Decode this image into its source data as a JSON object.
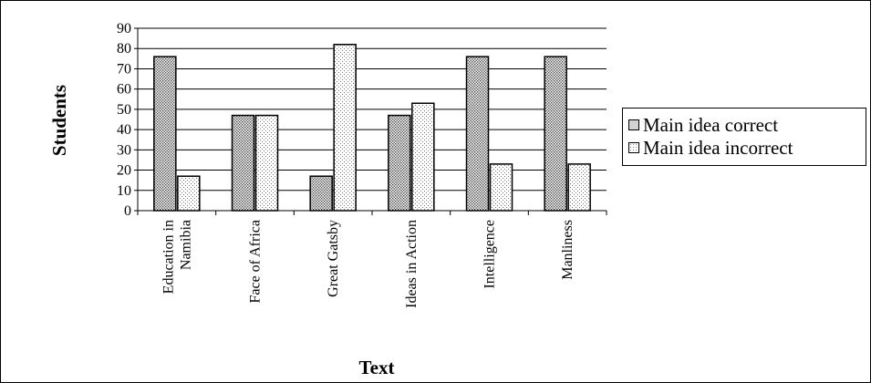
{
  "chart_data": {
    "type": "bar",
    "categories": [
      [
        "Education in",
        "Namibia"
      ],
      [
        "Face of Africa"
      ],
      [
        "Great Gatsby"
      ],
      [
        "Ideas in Action"
      ],
      [
        "Intelligence"
      ],
      [
        "Manliness"
      ]
    ],
    "series": [
      {
        "name": "Main idea correct",
        "values": [
          76,
          47,
          17,
          47,
          76,
          76
        ],
        "pattern": "dense-dots"
      },
      {
        "name": "Main idea incorrect",
        "values": [
          17,
          47,
          82,
          53,
          23,
          23
        ],
        "pattern": "sparse-dots"
      }
    ],
    "xlabel": "Text",
    "ylabel": "Students",
    "ylim": [
      0,
      90
    ],
    "yticks": [
      0,
      10,
      20,
      30,
      40,
      50,
      60,
      70,
      80,
      90
    ],
    "grid": true,
    "legend_position": "right",
    "colors": {
      "axis": "#000000",
      "bar_fill": "#ffffff",
      "dot_dark": "#555555",
      "dot_light": "#777777"
    }
  }
}
